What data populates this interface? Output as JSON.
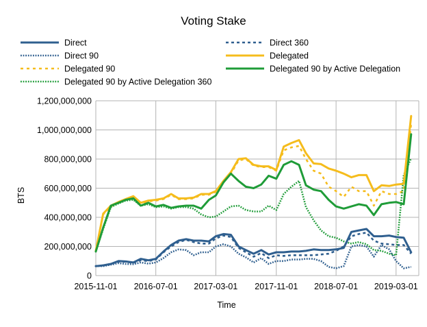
{
  "chart_data": {
    "type": "line",
    "title": "Voting Stake",
    "xlabel": "Time",
    "ylabel": "BTS",
    "ylim": [
      0,
      1200000000
    ],
    "yticks": [
      0,
      200000000,
      400000000,
      600000000,
      800000000,
      1000000000,
      1200000000
    ],
    "ytick_labels": [
      "0",
      "200,000,000",
      "400,000,000",
      "600,000,000",
      "800,000,000",
      "1,000,000,000",
      "1,200,000,000"
    ],
    "xlim": [
      "2015-11-01",
      "2019-06-01"
    ],
    "xticks": [
      "2015-11-01",
      "2016-07-01",
      "2017-03-01",
      "2017-11-01",
      "2018-07-01",
      "2019-03-01"
    ],
    "grid": "vertical and horizontal",
    "legend_position": "top",
    "x": [
      "2015-11-01",
      "2015-12-01",
      "2016-01-01",
      "2016-02-01",
      "2016-03-01",
      "2016-04-01",
      "2016-05-01",
      "2016-06-01",
      "2016-07-01",
      "2016-08-01",
      "2016-09-01",
      "2016-10-01",
      "2016-11-01",
      "2016-12-01",
      "2017-01-01",
      "2017-02-01",
      "2017-03-01",
      "2017-04-01",
      "2017-05-01",
      "2017-06-01",
      "2017-07-01",
      "2017-08-01",
      "2017-09-01",
      "2017-10-01",
      "2017-11-01",
      "2017-12-01",
      "2018-01-01",
      "2018-02-01",
      "2018-03-01",
      "2018-04-01",
      "2018-05-01",
      "2018-06-01",
      "2018-07-01",
      "2018-08-01",
      "2018-09-01",
      "2018-10-01",
      "2018-11-01",
      "2018-12-01",
      "2019-01-01",
      "2019-02-01",
      "2019-03-01",
      "2019-04-01",
      "2019-05-01"
    ],
    "series": [
      {
        "name": "Direct",
        "color": "#2f5f8f",
        "dash": "solid",
        "values": [
          65000000,
          70000000,
          80000000,
          100000000,
          97000000,
          90000000,
          115000000,
          105000000,
          115000000,
          165000000,
          210000000,
          240000000,
          250000000,
          240000000,
          240000000,
          235000000,
          270000000,
          285000000,
          280000000,
          200000000,
          175000000,
          150000000,
          175000000,
          145000000,
          160000000,
          160000000,
          165000000,
          165000000,
          170000000,
          180000000,
          175000000,
          175000000,
          180000000,
          190000000,
          300000000,
          310000000,
          320000000,
          270000000,
          270000000,
          275000000,
          265000000,
          260000000,
          160000000
        ]
      },
      {
        "name": "Direct 360",
        "color": "#2f5f8f",
        "dash": "4,4",
        "values": [
          65000000,
          70000000,
          80000000,
          95000000,
          95000000,
          88000000,
          105000000,
          100000000,
          110000000,
          160000000,
          200000000,
          230000000,
          245000000,
          230000000,
          220000000,
          220000000,
          255000000,
          275000000,
          265000000,
          190000000,
          160000000,
          130000000,
          155000000,
          120000000,
          140000000,
          135000000,
          140000000,
          140000000,
          140000000,
          140000000,
          145000000,
          150000000,
          170000000,
          200000000,
          270000000,
          285000000,
          295000000,
          240000000,
          220000000,
          215000000,
          210000000,
          210000000,
          150000000
        ]
      },
      {
        "name": "Direct 90",
        "color": "#2f5f8f",
        "dash": "1.8,1.8",
        "values": [
          65000000,
          65000000,
          75000000,
          85000000,
          80000000,
          78000000,
          90000000,
          82000000,
          90000000,
          120000000,
          160000000,
          180000000,
          175000000,
          140000000,
          160000000,
          160000000,
          200000000,
          215000000,
          200000000,
          150000000,
          125000000,
          90000000,
          120000000,
          80000000,
          100000000,
          100000000,
          110000000,
          110000000,
          115000000,
          115000000,
          100000000,
          60000000,
          50000000,
          65000000,
          200000000,
          210000000,
          200000000,
          130000000,
          210000000,
          180000000,
          100000000,
          50000000,
          60000000
        ]
      },
      {
        "name": "Delegated",
        "color": "#f5bc1c",
        "dash": "solid",
        "values": [
          170000000,
          425000000,
          480000000,
          505000000,
          525000000,
          545000000,
          500000000,
          515000000,
          520000000,
          530000000,
          560000000,
          530000000,
          530000000,
          535000000,
          560000000,
          560000000,
          580000000,
          650000000,
          710000000,
          800000000,
          805000000,
          760000000,
          750000000,
          750000000,
          725000000,
          885000000,
          910000000,
          930000000,
          840000000,
          770000000,
          765000000,
          735000000,
          720000000,
          700000000,
          675000000,
          690000000,
          690000000,
          580000000,
          620000000,
          615000000,
          625000000,
          630000000,
          1095000000
        ]
      },
      {
        "name": "Delegated 90",
        "color": "#f5bc1c",
        "dash": "4,5",
        "values": [
          165000000,
          420000000,
          475000000,
          500000000,
          520000000,
          540000000,
          495000000,
          510000000,
          515000000,
          525000000,
          555000000,
          525000000,
          525000000,
          530000000,
          555000000,
          555000000,
          575000000,
          640000000,
          700000000,
          790000000,
          800000000,
          755000000,
          745000000,
          745000000,
          720000000,
          860000000,
          880000000,
          890000000,
          800000000,
          720000000,
          700000000,
          610000000,
          580000000,
          540000000,
          610000000,
          580000000,
          580000000,
          480000000,
          580000000,
          560000000,
          560000000,
          580000000,
          1040000000
        ]
      },
      {
        "name": "Delegated 90 by Active Delegation",
        "color": "#1f9c38",
        "dash": "solid",
        "values": [
          165000000,
          330000000,
          480000000,
          500000000,
          520000000,
          530000000,
          480000000,
          500000000,
          475000000,
          485000000,
          465000000,
          475000000,
          480000000,
          480000000,
          460000000,
          520000000,
          550000000,
          640000000,
          700000000,
          650000000,
          610000000,
          600000000,
          625000000,
          685000000,
          665000000,
          760000000,
          785000000,
          760000000,
          620000000,
          590000000,
          580000000,
          520000000,
          475000000,
          460000000,
          475000000,
          490000000,
          480000000,
          415000000,
          490000000,
          500000000,
          505000000,
          490000000,
          970000000
        ]
      },
      {
        "name": "Delegated 90 by Active Delegation 360",
        "color": "#1f9c38",
        "dash": "1.8,1.8",
        "values": [
          165000000,
          320000000,
          470000000,
          495000000,
          515000000,
          520000000,
          480000000,
          490000000,
          470000000,
          475000000,
          460000000,
          470000000,
          470000000,
          460000000,
          420000000,
          400000000,
          405000000,
          440000000,
          475000000,
          480000000,
          450000000,
          440000000,
          440000000,
          480000000,
          450000000,
          560000000,
          610000000,
          650000000,
          470000000,
          380000000,
          310000000,
          270000000,
          260000000,
          235000000,
          220000000,
          230000000,
          215000000,
          175000000,
          170000000,
          150000000,
          140000000,
          690000000,
          805000000
        ]
      }
    ]
  }
}
